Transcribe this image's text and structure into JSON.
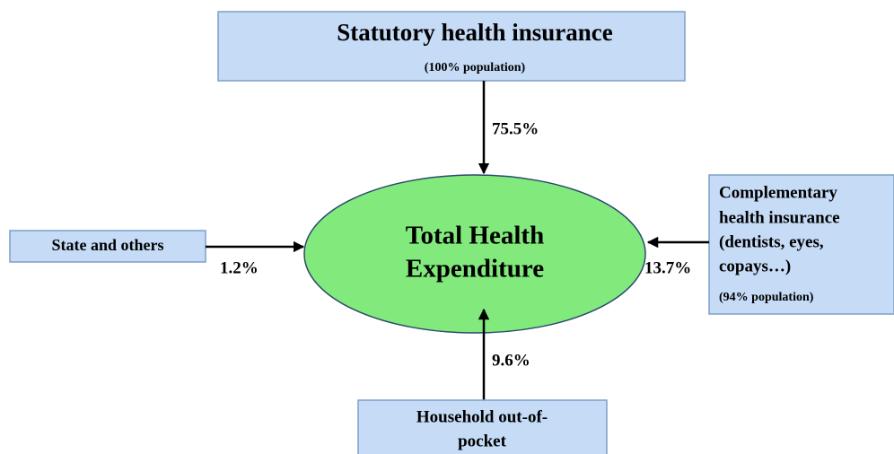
{
  "nodes": [
    {
      "lines": [
        "Statutory health insurance"
      ],
      "note": "(100% population)"
    },
    {
      "lines": [
        "State and others"
      ]
    },
    {
      "lines": [
        "Total Health",
        "Expenditure"
      ]
    },
    {
      "lines": [
        "Complementary",
        "health insurance",
        "(dentists, eyes,",
        "copays…)"
      ],
      "note": "(94% population)"
    },
    {
      "lines": [
        "Household out-of-",
        "pocket"
      ]
    }
  ],
  "flows": [
    {
      "from": "Statutory health insurance",
      "label": "75.5%"
    },
    {
      "from": "State and others",
      "label": "1.2%"
    },
    {
      "from": "Complementary health insurance",
      "label": "13.7%"
    },
    {
      "from": "Household out-of-pocket",
      "label": "9.6%"
    }
  ]
}
